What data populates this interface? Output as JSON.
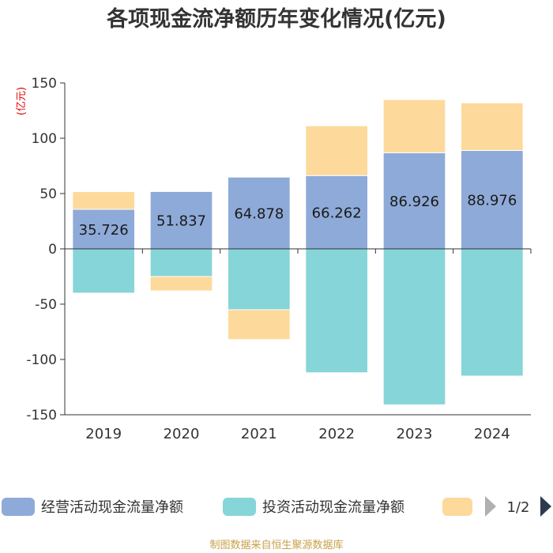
{
  "chart_data": {
    "type": "bar",
    "title": "各项现金流净额历年变化情况(亿元)",
    "ylabel": "(亿元)",
    "xlabel": "",
    "ylim": [
      -150,
      150
    ],
    "yticks": [
      -150,
      -100,
      -50,
      0,
      50,
      100,
      150
    ],
    "categories": [
      "2019",
      "2020",
      "2021",
      "2022",
      "2023",
      "2024"
    ],
    "series": [
      {
        "name": "经营活动现金流量净额",
        "color": "#8eaad8",
        "values": [
          35.726,
          51.837,
          64.878,
          66.262,
          86.926,
          88.976
        ],
        "labels": [
          "35.726",
          "51.837",
          "64.878",
          "66.262",
          "86.926",
          "88.976"
        ]
      },
      {
        "name": "投资活动现金流量净额",
        "color": "#86d5d8",
        "values": [
          -40,
          -25,
          -55,
          -112,
          -141,
          -115
        ]
      },
      {
        "name": "",
        "color": "#fdd99b",
        "values": [
          16,
          -13,
          -27,
          45,
          48,
          43
        ]
      }
    ],
    "stacked": true,
    "legend_position": "bottom",
    "legend_page": "1/2",
    "source": "制图数据来自恒生聚源数据库"
  }
}
